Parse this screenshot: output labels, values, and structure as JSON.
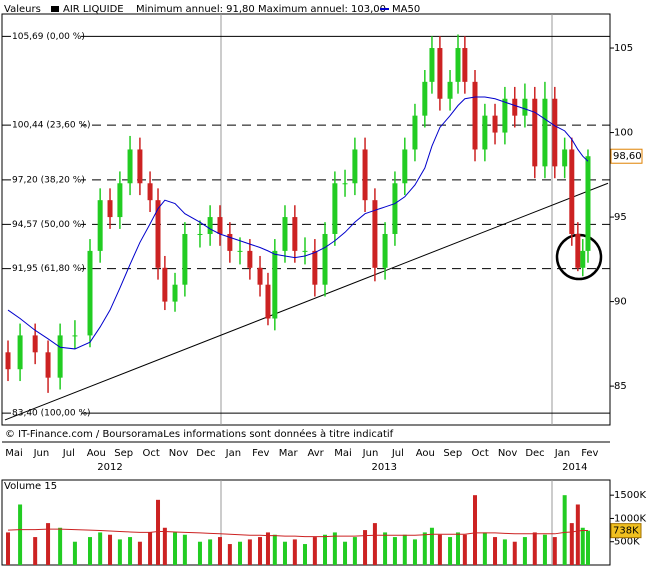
{
  "header": {
    "field": "Valeurs",
    "range_text": "Minimum annuel: 91,80 Maximum annuel: 103,00"
  },
  "footer": "© IT-Finance.com / BoursoramaLes informations sont données à titre indicatif",
  "chart_data": [
    {
      "type": "candlestick",
      "name": "AIR LIQUIDE",
      "legend_color": "#000000",
      "up_color": "#22cc22",
      "down_color": "#cc2222",
      "months": [
        "Mai",
        "Jun",
        "Jul",
        "Aou",
        "Sep",
        "Oct",
        "Nov",
        "Dec",
        "Jan",
        "Fev",
        "Mar",
        "Avr",
        "Mai",
        "Jun",
        "Jul",
        "Aou",
        "Sep",
        "Oct",
        "Nov",
        "Dec",
        "Jan",
        "Fev"
      ],
      "years": [
        {
          "label": "2012",
          "x": 3.5
        },
        {
          "label": "2013",
          "x": 13.5
        },
        {
          "label": "2014",
          "x": 20.45
        }
      ],
      "xlim": [
        -0.33,
        21.66
      ],
      "ylim": [
        82.7,
        107.25
      ],
      "yticks": [
        85,
        90,
        95,
        100,
        105
      ],
      "x": [
        -0.22,
        0.22,
        0.77,
        1.24,
        1.68,
        2.22,
        2.77,
        3.14,
        3.5,
        3.86,
        4.23,
        4.59,
        4.96,
        5.25,
        5.5,
        5.87,
        6.23,
        6.78,
        7.15,
        7.51,
        7.87,
        8.24,
        8.6,
        8.97,
        9.26,
        9.51,
        9.88,
        10.24,
        10.61,
        10.97,
        11.34,
        11.7,
        12.07,
        12.43,
        12.8,
        13.16,
        13.53,
        13.89,
        14.25,
        14.62,
        14.98,
        15.24,
        15.53,
        15.9,
        16.19,
        16.44,
        16.81,
        17.17,
        17.54,
        17.9,
        18.26,
        18.63,
        18.99,
        19.36,
        19.72,
        20.08,
        20.34,
        20.56,
        20.74,
        20.93
      ],
      "open": [
        87,
        86,
        88,
        87,
        85.5,
        88,
        88,
        93,
        96,
        95,
        97,
        99,
        97,
        96,
        92,
        90,
        91,
        94,
        94,
        95,
        94,
        93,
        93,
        92,
        91,
        89,
        93,
        95,
        93,
        93,
        91,
        94,
        97,
        97,
        99,
        96,
        92,
        94,
        97,
        99,
        101,
        103,
        105,
        102,
        103,
        105,
        103,
        99,
        101,
        100,
        102,
        101,
        102,
        98,
        102,
        98,
        99,
        94,
        92,
        93
      ],
      "high": [
        87.7,
        88.7,
        88.7,
        87.7,
        88.7,
        88.9,
        93.7,
        96.7,
        96.7,
        97.7,
        99.8,
        99.7,
        97.7,
        96.7,
        92.7,
        91.7,
        94.7,
        94.8,
        95.7,
        95.7,
        94.7,
        93.8,
        93.7,
        92.7,
        91.7,
        93.7,
        95.7,
        95.7,
        93.8,
        93.7,
        94.7,
        97.7,
        97.8,
        99.7,
        99.7,
        96.7,
        94.7,
        97.7,
        99.7,
        101.7,
        103.7,
        105.7,
        105.7,
        103.7,
        105.8,
        105.7,
        103.7,
        101.7,
        101.7,
        102.7,
        102.7,
        102.9,
        102.7,
        103,
        102.7,
        99.7,
        99.7,
        94.7,
        93.7,
        99
      ],
      "low": [
        85.3,
        85.3,
        86.3,
        84.6,
        84.8,
        87.2,
        87.3,
        92.3,
        94.3,
        94.3,
        96.3,
        96.3,
        95.3,
        91.3,
        89.5,
        89.4,
        90.3,
        93.2,
        93.3,
        93.3,
        92.3,
        92.2,
        91.3,
        90.3,
        88.6,
        88.3,
        92.3,
        92.3,
        92.2,
        90.3,
        90.3,
        93.3,
        96.2,
        96.3,
        95.3,
        91.2,
        91.3,
        93.3,
        96.3,
        98.3,
        100.3,
        102.3,
        101.3,
        101.3,
        102.3,
        102.3,
        98.3,
        98.3,
        99.3,
        99.3,
        100.3,
        100.3,
        97.3,
        97.3,
        97.3,
        97.3,
        93.3,
        91.8,
        91.5,
        92.3
      ],
      "close": [
        86,
        88,
        87,
        85.5,
        88,
        88,
        93,
        96,
        95,
        97,
        99,
        97,
        96,
        92,
        90,
        91,
        94,
        94,
        95,
        94,
        93,
        93,
        92,
        91,
        89,
        93,
        95,
        93,
        93,
        91,
        94,
        97,
        97,
        99,
        96,
        92,
        94,
        97,
        99,
        101,
        103,
        105,
        102,
        103,
        105,
        103,
        99,
        101,
        100,
        102,
        101,
        102,
        98,
        102,
        98,
        99,
        94,
        92,
        93,
        98.6
      ],
      "series": [
        {
          "name": "MA50",
          "color": "#0000cc",
          "values": [
            89.5,
            89,
            88.3,
            87.8,
            87.3,
            87.2,
            87.6,
            88.5,
            89.5,
            90.8,
            92.2,
            93.5,
            94.6,
            95.5,
            96,
            95.8,
            95.2,
            94.7,
            94.3,
            94,
            93.8,
            93.6,
            93.4,
            93.2,
            93,
            92.8,
            92.7,
            92.6,
            92.7,
            92.9,
            93.2,
            93.6,
            94.1,
            94.7,
            95.2,
            95.4,
            95.6,
            95.8,
            96.2,
            96.9,
            97.9,
            99.2,
            100.3,
            101,
            101.6,
            102,
            102.1,
            102.1,
            102,
            101.8,
            101.6,
            101.4,
            101.2,
            100.8,
            100.4,
            100.1,
            99.6,
            99,
            98.6,
            98.3
          ]
        }
      ],
      "levels": [
        {
          "value": 105.69,
          "label": "105,69 (0,00 %)",
          "line_style": "solid"
        },
        {
          "value": 100.44,
          "label": "100,44 (23,60 %)",
          "line_style": "dashed"
        },
        {
          "value": 97.2,
          "label": "97,20 (38,20 %)",
          "line_style": "dashed"
        },
        {
          "value": 94.57,
          "label": "94,57 (50,00 %)",
          "line_style": "dashed"
        },
        {
          "value": 91.95,
          "label": "91,95 (61,80 %)",
          "line_style": "dashed"
        },
        {
          "value": 83.4,
          "label": "83,40 (100,00 %)",
          "line_style": "solid"
        }
      ],
      "trendline": {
        "x": [
          -0.33,
          21.66
        ],
        "y": [
          83.0,
          97.0
        ]
      },
      "last_price": {
        "value": 98.6,
        "label": "98,60"
      }
    },
    {
      "type": "bar",
      "title": "Volume 15",
      "up_color": "#22cc22",
      "down_color": "#cc2222",
      "ylim": [
        0,
        1826
      ],
      "yticks": [
        {
          "value": 500,
          "label": "500K"
        },
        {
          "value": 1000,
          "label": "1000K"
        },
        {
          "value": 1500,
          "label": "1500K"
        }
      ],
      "values": [
        700,
        1300,
        600,
        900,
        800,
        500,
        600,
        700,
        650,
        550,
        600,
        500,
        700,
        1400,
        800,
        700,
        650,
        500,
        550,
        600,
        450,
        500,
        550,
        600,
        700,
        650,
        500,
        550,
        450,
        600,
        650,
        700,
        500,
        600,
        750,
        900,
        700,
        600,
        650,
        550,
        700,
        800,
        650,
        600,
        700,
        650,
        1500,
        700,
        600,
        550,
        500,
        600,
        700,
        650,
        600,
        1500,
        900,
        1300,
        800,
        738
      ],
      "average": {
        "color": "#cc2222",
        "values": [
          750,
          760,
          760,
          770,
          770,
          760,
          750,
          740,
          730,
          720,
          710,
          700,
          700,
          720,
          720,
          710,
          700,
          690,
          680,
          670,
          660,
          650,
          640,
          640,
          630,
          630,
          620,
          620,
          610,
          610,
          610,
          620,
          620,
          620,
          630,
          640,
          640,
          640,
          640,
          640,
          650,
          660,
          660,
          660,
          660,
          660,
          690,
          690,
          690,
          680,
          670,
          670,
          670,
          670,
          670,
          700,
          710,
          730,
          740,
          740
        ]
      },
      "last_value": {
        "value": 738,
        "label": "738K"
      }
    }
  ]
}
